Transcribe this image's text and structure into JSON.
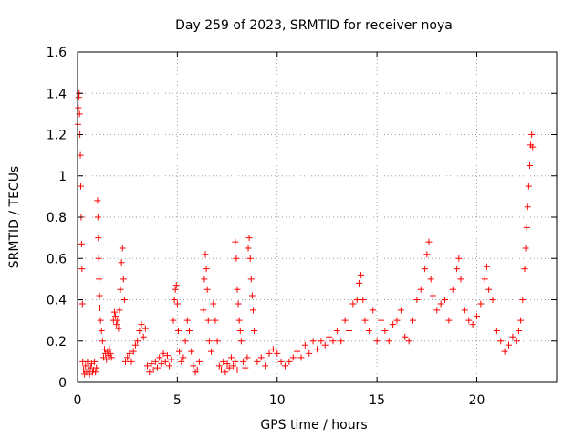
{
  "chart_data": {
    "type": "scatter",
    "title": "Day 259 of 2023, SRMTID for receiver noya",
    "xlabel": "GPS time / hours",
    "ylabel": "SRMTID / TECUs",
    "xlim": [
      0,
      24
    ],
    "ylim": [
      0,
      1.6
    ],
    "grid": true,
    "marker": "+",
    "x_ticks": [
      0,
      5,
      10,
      15,
      20
    ],
    "x_tick_labels": [
      "0",
      "5",
      "10",
      "15",
      "20"
    ],
    "y_ticks": [
      0,
      0.2,
      0.4,
      0.6,
      0.8,
      1,
      1.2,
      1.4,
      1.6
    ],
    "y_tick_labels": [
      "0",
      "0.2",
      "0.4",
      "0.6",
      "0.8",
      "1",
      "1.2",
      "1.4",
      "1.6"
    ],
    "series": [
      {
        "name": "SRMTID",
        "color": "#ff0000",
        "points": [
          [
            0.02,
            1.25
          ],
          [
            0.04,
            1.33
          ],
          [
            0.06,
            1.38
          ],
          [
            0.08,
            1.4
          ],
          [
            0.1,
            1.3
          ],
          [
            0.12,
            1.2
          ],
          [
            0.14,
            1.1
          ],
          [
            0.16,
            0.95
          ],
          [
            0.18,
            0.8
          ],
          [
            0.2,
            0.67
          ],
          [
            0.22,
            0.55
          ],
          [
            0.24,
            0.38
          ],
          [
            0.26,
            0.1
          ],
          [
            0.3,
            0.06
          ],
          [
            0.35,
            0.04
          ],
          [
            0.4,
            0.08
          ],
          [
            0.45,
            0.05
          ],
          [
            0.5,
            0.1
          ],
          [
            0.55,
            0.06
          ],
          [
            0.6,
            0.04
          ],
          [
            0.65,
            0.07
          ],
          [
            0.7,
            0.09
          ],
          [
            0.75,
            0.05
          ],
          [
            0.8,
            0.06
          ],
          [
            0.85,
            0.1
          ],
          [
            0.9,
            0.05
          ],
          [
            0.95,
            0.07
          ],
          [
            1.0,
            0.88
          ],
          [
            1.02,
            0.8
          ],
          [
            1.04,
            0.7
          ],
          [
            1.06,
            0.6
          ],
          [
            1.08,
            0.5
          ],
          [
            1.1,
            0.42
          ],
          [
            1.12,
            0.36
          ],
          [
            1.15,
            0.3
          ],
          [
            1.2,
            0.25
          ],
          [
            1.25,
            0.2
          ],
          [
            1.3,
            0.12
          ],
          [
            1.35,
            0.16
          ],
          [
            1.4,
            0.14
          ],
          [
            1.45,
            0.11
          ],
          [
            1.5,
            0.15
          ],
          [
            1.55,
            0.13
          ],
          [
            1.6,
            0.16
          ],
          [
            1.65,
            0.14
          ],
          [
            1.7,
            0.12
          ],
          [
            1.8,
            0.3
          ],
          [
            1.85,
            0.34
          ],
          [
            1.9,
            0.32
          ],
          [
            1.95,
            0.28
          ],
          [
            2.0,
            0.3
          ],
          [
            2.05,
            0.26
          ],
          [
            2.1,
            0.35
          ],
          [
            2.15,
            0.45
          ],
          [
            2.2,
            0.58
          ],
          [
            2.25,
            0.65
          ],
          [
            2.3,
            0.5
          ],
          [
            2.35,
            0.4
          ],
          [
            2.4,
            0.1
          ],
          [
            2.5,
            0.12
          ],
          [
            2.6,
            0.14
          ],
          [
            2.7,
            0.1
          ],
          [
            2.8,
            0.15
          ],
          [
            2.9,
            0.18
          ],
          [
            3.0,
            0.2
          ],
          [
            3.1,
            0.25
          ],
          [
            3.2,
            0.28
          ],
          [
            3.3,
            0.22
          ],
          [
            3.4,
            0.26
          ],
          [
            3.5,
            0.08
          ],
          [
            3.6,
            0.05
          ],
          [
            3.7,
            0.09
          ],
          [
            3.8,
            0.06
          ],
          [
            3.9,
            0.1
          ],
          [
            4.0,
            0.07
          ],
          [
            4.1,
            0.12
          ],
          [
            4.2,
            0.09
          ],
          [
            4.3,
            0.14
          ],
          [
            4.4,
            0.1
          ],
          [
            4.5,
            0.13
          ],
          [
            4.6,
            0.08
          ],
          [
            4.7,
            0.11
          ],
          [
            4.8,
            0.3
          ],
          [
            4.85,
            0.4
          ],
          [
            4.9,
            0.45
          ],
          [
            4.95,
            0.47
          ],
          [
            5.0,
            0.38
          ],
          [
            5.05,
            0.25
          ],
          [
            5.1,
            0.15
          ],
          [
            5.2,
            0.1
          ],
          [
            5.3,
            0.12
          ],
          [
            5.4,
            0.2
          ],
          [
            5.5,
            0.3
          ],
          [
            5.6,
            0.25
          ],
          [
            5.7,
            0.15
          ],
          [
            5.8,
            0.08
          ],
          [
            5.9,
            0.05
          ],
          [
            6.0,
            0.06
          ],
          [
            6.1,
            0.1
          ],
          [
            6.3,
            0.35
          ],
          [
            6.35,
            0.5
          ],
          [
            6.4,
            0.62
          ],
          [
            6.45,
            0.55
          ],
          [
            6.5,
            0.45
          ],
          [
            6.55,
            0.3
          ],
          [
            6.6,
            0.2
          ],
          [
            6.7,
            0.15
          ],
          [
            6.8,
            0.38
          ],
          [
            6.9,
            0.3
          ],
          [
            7.0,
            0.2
          ],
          [
            7.1,
            0.08
          ],
          [
            7.2,
            0.06
          ],
          [
            7.3,
            0.1
          ],
          [
            7.4,
            0.05
          ],
          [
            7.5,
            0.09
          ],
          [
            7.6,
            0.07
          ],
          [
            7.7,
            0.12
          ],
          [
            7.8,
            0.08
          ],
          [
            7.9,
            0.1
          ],
          [
            8.0,
            0.06
          ],
          [
            7.9,
            0.68
          ],
          [
            7.95,
            0.6
          ],
          [
            8.0,
            0.45
          ],
          [
            8.05,
            0.38
          ],
          [
            8.1,
            0.3
          ],
          [
            8.15,
            0.25
          ],
          [
            8.2,
            0.2
          ],
          [
            8.3,
            0.1
          ],
          [
            8.4,
            0.07
          ],
          [
            8.5,
            0.12
          ],
          [
            8.55,
            0.65
          ],
          [
            8.6,
            0.7
          ],
          [
            8.65,
            0.6
          ],
          [
            8.7,
            0.5
          ],
          [
            8.75,
            0.42
          ],
          [
            8.8,
            0.35
          ],
          [
            8.85,
            0.25
          ],
          [
            9.0,
            0.1
          ],
          [
            9.2,
            0.12
          ],
          [
            9.4,
            0.08
          ],
          [
            9.6,
            0.14
          ],
          [
            9.8,
            0.16
          ],
          [
            10.0,
            0.14
          ],
          [
            10.2,
            0.1
          ],
          [
            10.4,
            0.08
          ],
          [
            10.6,
            0.1
          ],
          [
            10.8,
            0.12
          ],
          [
            11.0,
            0.15
          ],
          [
            11.2,
            0.12
          ],
          [
            11.4,
            0.18
          ],
          [
            11.6,
            0.14
          ],
          [
            11.8,
            0.2
          ],
          [
            12.0,
            0.16
          ],
          [
            12.2,
            0.2
          ],
          [
            12.4,
            0.18
          ],
          [
            12.6,
            0.22
          ],
          [
            12.8,
            0.2
          ],
          [
            13.0,
            0.25
          ],
          [
            13.2,
            0.2
          ],
          [
            13.4,
            0.3
          ],
          [
            13.6,
            0.25
          ],
          [
            13.8,
            0.38
          ],
          [
            14.0,
            0.4
          ],
          [
            14.1,
            0.48
          ],
          [
            14.2,
            0.52
          ],
          [
            14.3,
            0.4
          ],
          [
            14.4,
            0.3
          ],
          [
            14.6,
            0.25
          ],
          [
            14.8,
            0.35
          ],
          [
            15.0,
            0.2
          ],
          [
            15.2,
            0.3
          ],
          [
            15.4,
            0.25
          ],
          [
            15.6,
            0.2
          ],
          [
            15.8,
            0.28
          ],
          [
            16.0,
            0.3
          ],
          [
            16.2,
            0.35
          ],
          [
            16.4,
            0.22
          ],
          [
            16.6,
            0.2
          ],
          [
            16.8,
            0.3
          ],
          [
            17.0,
            0.4
          ],
          [
            17.2,
            0.45
          ],
          [
            17.4,
            0.55
          ],
          [
            17.5,
            0.62
          ],
          [
            17.6,
            0.68
          ],
          [
            17.7,
            0.5
          ],
          [
            17.8,
            0.42
          ],
          [
            18.0,
            0.35
          ],
          [
            18.2,
            0.38
          ],
          [
            18.4,
            0.4
          ],
          [
            18.6,
            0.3
          ],
          [
            18.8,
            0.45
          ],
          [
            19.0,
            0.55
          ],
          [
            19.1,
            0.6
          ],
          [
            19.2,
            0.5
          ],
          [
            19.4,
            0.35
          ],
          [
            19.6,
            0.3
          ],
          [
            19.8,
            0.28
          ],
          [
            20.0,
            0.32
          ],
          [
            20.2,
            0.38
          ],
          [
            20.4,
            0.5
          ],
          [
            20.5,
            0.56
          ],
          [
            20.6,
            0.45
          ],
          [
            20.8,
            0.4
          ],
          [
            21.0,
            0.25
          ],
          [
            21.2,
            0.2
          ],
          [
            21.4,
            0.15
          ],
          [
            21.6,
            0.18
          ],
          [
            21.8,
            0.22
          ],
          [
            22.0,
            0.2
          ],
          [
            22.1,
            0.25
          ],
          [
            22.2,
            0.3
          ],
          [
            22.3,
            0.4
          ],
          [
            22.4,
            0.55
          ],
          [
            22.45,
            0.65
          ],
          [
            22.5,
            0.75
          ],
          [
            22.55,
            0.85
          ],
          [
            22.6,
            0.95
          ],
          [
            22.65,
            1.05
          ],
          [
            22.7,
            1.15
          ],
          [
            22.75,
            1.2
          ],
          [
            22.8,
            1.14
          ]
        ]
      }
    ]
  }
}
